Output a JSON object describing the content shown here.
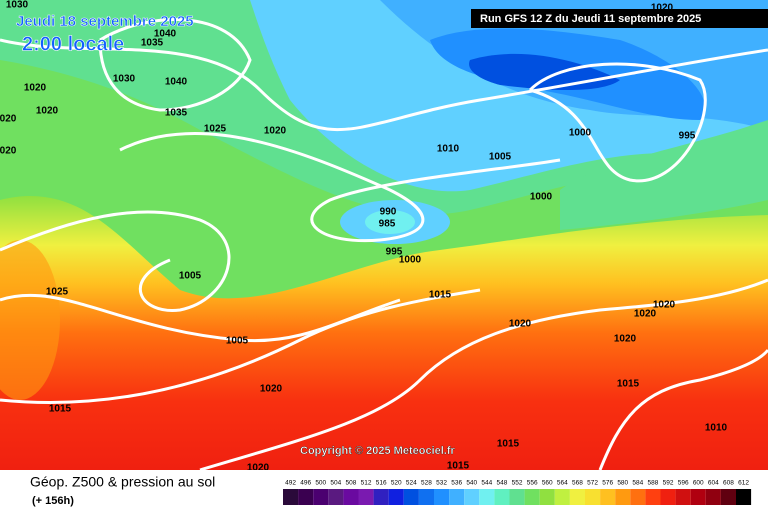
{
  "header": {
    "date": "Jeudi 18 septembre 2025",
    "time": "2:00 locale",
    "run": "Run GFS 12 Z du Jeudi 11 septembre 2025"
  },
  "footer": {
    "title": "Géop. Z500 & pression au sol",
    "subtitle": "(+ 156h)",
    "copyright": "Copyright © 2025 Meteociel.fr"
  },
  "isobars": [
    "1030",
    "1035",
    "1040",
    "1020",
    "1030",
    "1040",
    "1020",
    "1035",
    "1025",
    "1020",
    "020",
    "020",
    "1010",
    "1005",
    "1000",
    "995",
    "1020",
    "1000",
    "990",
    "985",
    "995",
    "1000",
    "1005",
    "1025",
    "1015",
    "1020",
    "1020",
    "1020",
    "1020",
    "1005",
    "1020",
    "1015",
    "1015",
    "1010",
    "1015",
    "1015",
    "1020"
  ],
  "scale": {
    "labels": [
      492,
      496,
      500,
      504,
      508,
      512,
      516,
      520,
      524,
      528,
      532,
      536,
      540,
      544,
      548,
      552,
      556,
      560,
      564,
      568,
      572,
      576,
      580,
      584,
      588,
      592,
      596,
      600,
      604,
      608,
      612
    ],
    "colors": [
      "#2a0a3a",
      "#3a0050",
      "#4b0070",
      "#5a1a80",
      "#6a0aa0",
      "#7a1ab0",
      "#3020c0",
      "#1020e0",
      "#0050e0",
      "#1070f0",
      "#2090ff",
      "#40b0ff",
      "#60d0ff",
      "#70f0f0",
      "#60f0c0",
      "#60e090",
      "#70e060",
      "#90e040",
      "#c0f040",
      "#f0f040",
      "#f8e030",
      "#ffc020",
      "#ff9a10",
      "#ff7010",
      "#ff4010",
      "#f02010",
      "#d01010",
      "#b00010",
      "#900010",
      "#600010",
      "#000000"
    ]
  }
}
